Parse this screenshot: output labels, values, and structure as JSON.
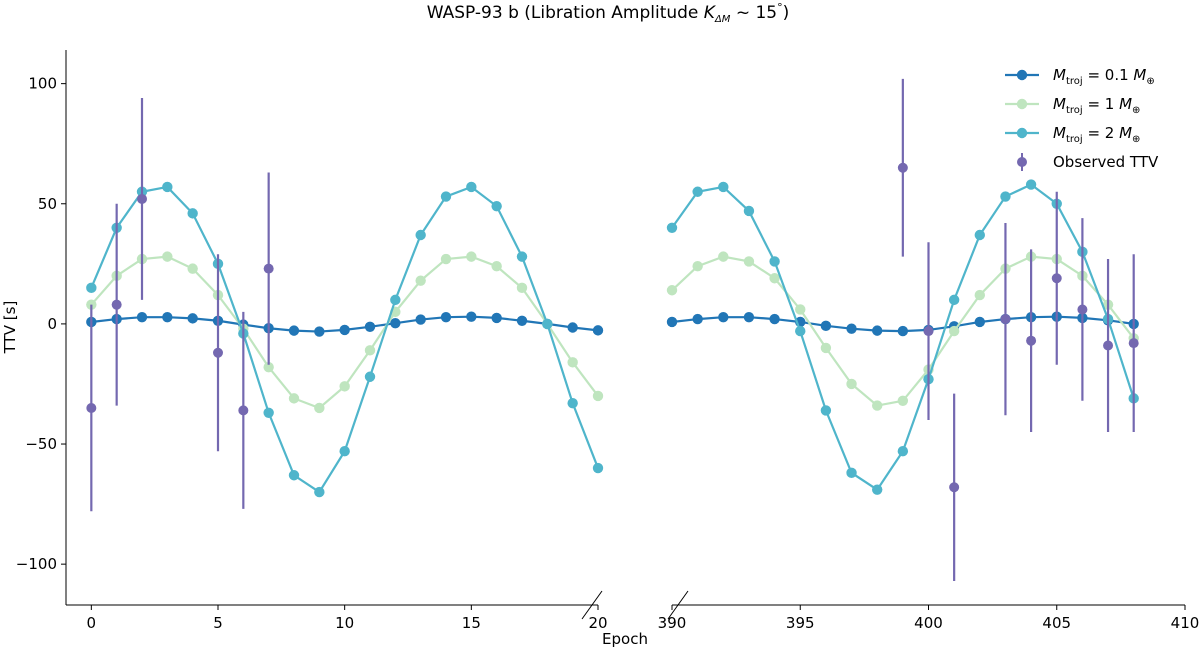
{
  "chart_data": {
    "type": "line",
    "title": "WASP-93 b (Libration Amplitude K_ΔM ~ 15°)",
    "title_parts": {
      "prefix": "WASP-93 b (Libration Amplitude ",
      "k": "K",
      "k_sub": "ΔM",
      "tilde": " ~ 15",
      "degree": "°",
      "suffix": ")"
    },
    "xlabel": "Epoch",
    "ylabel": "TTV [s]",
    "broken_x_axis": true,
    "panels": [
      {
        "name": "left",
        "xlim": [
          -1,
          20
        ],
        "xticks": [
          0,
          5,
          10,
          15,
          20
        ]
      },
      {
        "name": "right",
        "xlim": [
          390,
          410
        ],
        "xticks": [
          390,
          395,
          400,
          405,
          410
        ]
      }
    ],
    "ylim": [
      -117,
      114
    ],
    "yticks": [
      -100,
      -50,
      0,
      50,
      100
    ],
    "ytick_labels": [
      "−100",
      "−50",
      "0",
      "50",
      "100"
    ],
    "grid": false,
    "legend_position": "top-right",
    "series": [
      {
        "name": "M_troj = 0.1 M_⊕",
        "legend_lhs": "M",
        "legend_sub": "troj",
        "legend_rhs": " = 0.1 ",
        "legend_unit": "M",
        "legend_unit_sub": "⊕",
        "color": "#2176b6",
        "marker_size": 5.2,
        "left": {
          "x": [
            0,
            1,
            2,
            3,
            4,
            5,
            6,
            7,
            8,
            9,
            10,
            11,
            12,
            13,
            14,
            15,
            16,
            17,
            18,
            19,
            20
          ],
          "y": [
            0.8,
            2.0,
            2.8,
            2.8,
            2.3,
            1.3,
            -0.3,
            -1.8,
            -2.8,
            -3.2,
            -2.5,
            -1.2,
            0.3,
            1.8,
            2.8,
            3.0,
            2.5,
            1.3,
            0,
            -1.5,
            -2.7
          ]
        },
        "right": {
          "x": [
            390,
            391,
            392,
            393,
            394,
            395,
            396,
            397,
            398,
            399,
            400,
            401,
            402,
            403,
            404,
            405,
            406,
            407,
            408
          ],
          "y": [
            0.8,
            2.0,
            2.8,
            2.8,
            2.0,
            0.8,
            -0.8,
            -2.0,
            -2.8,
            -3.0,
            -2.5,
            -1.0,
            0.8,
            2.0,
            2.8,
            3.0,
            2.5,
            1.5,
            0
          ]
        }
      },
      {
        "name": "M_troj = 1 M_⊕",
        "legend_lhs": "M",
        "legend_sub": "troj",
        "legend_rhs": " = 1 ",
        "legend_unit": "M",
        "legend_unit_sub": "⊕",
        "color": "#bfe5bf",
        "marker_size": 5.2,
        "left": {
          "x": [
            0,
            1,
            2,
            3,
            4,
            5,
            6,
            7,
            8,
            9,
            10,
            11,
            12,
            13,
            14,
            15,
            16,
            17,
            18,
            19,
            20
          ],
          "y": [
            8,
            20,
            27,
            28,
            23,
            12,
            -2,
            -18,
            -31,
            -35,
            -26,
            -11,
            5,
            18,
            27,
            28,
            24,
            15,
            0,
            -16,
            -30
          ]
        },
        "right": {
          "x": [
            390,
            391,
            392,
            393,
            394,
            395,
            396,
            397,
            398,
            399,
            400,
            401,
            402,
            403,
            404,
            405,
            406,
            407,
            408
          ],
          "y": [
            14,
            24,
            28,
            26,
            19,
            6,
            -10,
            -25,
            -34,
            -32,
            -19,
            -3,
            12,
            23,
            28,
            27,
            20,
            8,
            -6
          ]
        }
      },
      {
        "name": "M_troj = 2 M_⊕",
        "legend_lhs": "M",
        "legend_sub": "troj",
        "legend_rhs": " = 2 ",
        "legend_unit": "M",
        "legend_unit_sub": "⊕",
        "color": "#4fb5cb",
        "marker_size": 5.2,
        "left": {
          "x": [
            0,
            1,
            2,
            3,
            4,
            5,
            6,
            7,
            8,
            9,
            10,
            11,
            12,
            13,
            14,
            15,
            16,
            17,
            18,
            19,
            20
          ],
          "y": [
            15,
            40,
            55,
            57,
            46,
            25,
            -4,
            -37,
            -63,
            -70,
            -53,
            -22,
            10,
            37,
            53,
            57,
            49,
            28,
            0,
            -33,
            -60
          ]
        },
        "right": {
          "x": [
            390,
            391,
            392,
            393,
            394,
            395,
            396,
            397,
            398,
            399,
            400,
            401,
            402,
            403,
            404,
            405,
            406,
            407,
            408
          ],
          "y": [
            40,
            55,
            57,
            47,
            26,
            -3,
            -36,
            -62,
            -69,
            -53,
            -23,
            10,
            37,
            53,
            58,
            50,
            30,
            2,
            -31
          ]
        }
      },
      {
        "name": "Observed TTV",
        "type": "errorbar",
        "color": "#7468b0",
        "marker_size": 5,
        "points": [
          {
            "x": 0,
            "y": -35,
            "err": 43
          },
          {
            "x": 1,
            "y": 8,
            "err": 42
          },
          {
            "x": 2,
            "y": 52,
            "err": 42
          },
          {
            "x": 5,
            "y": -12,
            "err": 41
          },
          {
            "x": 6,
            "y": -36,
            "err": 41
          },
          {
            "x": 7,
            "y": 23,
            "err": 40
          },
          {
            "x": 399,
            "y": 65,
            "err": 37
          },
          {
            "x": 400,
            "y": -3,
            "err": 37
          },
          {
            "x": 401,
            "y": -68,
            "err": 39
          },
          {
            "x": 403,
            "y": 2,
            "err": 40
          },
          {
            "x": 404,
            "y": -7,
            "err": 38
          },
          {
            "x": 405,
            "y": 19,
            "err": 36
          },
          {
            "x": 406,
            "y": 6,
            "err": 38
          },
          {
            "x": 407,
            "y": -9,
            "err": 36
          },
          {
            "x": 408,
            "y": -8,
            "err": 37
          }
        ]
      }
    ]
  }
}
